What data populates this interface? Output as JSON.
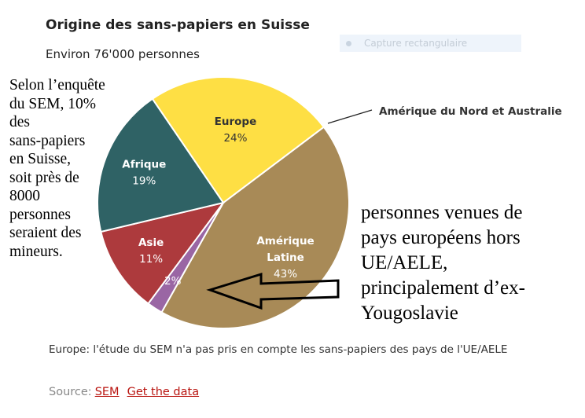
{
  "chart_data": {
    "type": "pie",
    "title": "Origine des sans-papiers en Suisse",
    "subtitle": "Environ 76'000 personnes",
    "slices": [
      {
        "label_lines": [
          "Amérique",
          "Latine"
        ],
        "value": 43,
        "value_label": "43%",
        "color": "#a88a57"
      },
      {
        "label_lines": [],
        "value": 2,
        "value_label": "2%",
        "color": "#9a66a4",
        "callout": "Amérique du Nord et Australie"
      },
      {
        "label_lines": [
          "Asie"
        ],
        "value": 11,
        "value_label": "11%",
        "color": "#ad3a3d"
      },
      {
        "label_lines": [
          "Afrique"
        ],
        "value": 19,
        "value_label": "19%",
        "color": "#2f6265"
      },
      {
        "label_lines": [
          "Europe"
        ],
        "value": 24,
        "value_label": "24%",
        "color": "#fedf44"
      }
    ]
  },
  "annotations": {
    "left_note": [
      "Selon l’enquête",
      "du SEM, 10%",
      "des",
      "sans-papiers",
      "en Suisse,",
      "soit près de",
      "8000",
      "personnes",
      "seraient des",
      "mineurs."
    ],
    "right_note": [
      "personnes venues de",
      "pays européens hors",
      "UE/AELE,",
      "principalement d’ex-",
      "Yougoslavie"
    ]
  },
  "footnote": "Europe: l'étude du SEM n'a pas pris en compte les sans-papiers des pays de l'UE/AELE",
  "source": {
    "prefix": "Source:",
    "link1": "SEM",
    "link2": "Get the data"
  },
  "capture_overlay": {
    "label": "Capture rectangulaire"
  }
}
